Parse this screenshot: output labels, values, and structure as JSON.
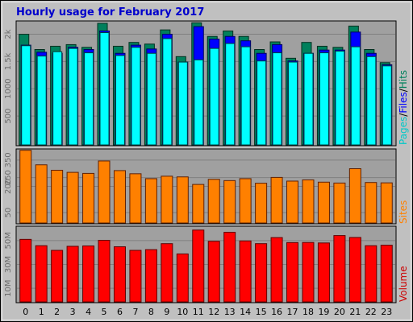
{
  "title": "Hourly usage for February 2017",
  "colors": {
    "background": "#c0c0c0",
    "panel": "#a0a0a0",
    "grid": "#808080",
    "title": "#0000cc",
    "hits": "#00805c",
    "files": "#0000ff",
    "pages": "#00ffff",
    "sites": "#ff8000",
    "volume": "#ff0000"
  },
  "side_labels": {
    "pages": "Pages",
    "files": "Files",
    "hits": "Hits",
    "sites": "Sites",
    "volume": "Volume",
    "sep": "/"
  },
  "chart_data": [
    {
      "type": "bar",
      "name": "hits-files-pages",
      "categories": [
        "0",
        "1",
        "2",
        "3",
        "4",
        "5",
        "6",
        "7",
        "8",
        "9",
        "10",
        "11",
        "12",
        "13",
        "14",
        "15",
        "16",
        "17",
        "18",
        "19",
        "20",
        "21",
        "22",
        "23"
      ],
      "ylim": [
        0,
        2200
      ],
      "yticks": [
        500,
        1000,
        1500,
        2000
      ],
      "ytick_labels": [
        "500",
        "1000",
        "1.5k",
        "2k"
      ],
      "series": [
        {
          "name": "Hits",
          "values": [
            2000,
            1720,
            1780,
            1810,
            1760,
            2200,
            1780,
            1850,
            1820,
            2080,
            1590,
            2210,
            1960,
            2060,
            1960,
            1720,
            1860,
            1560,
            1850,
            1780,
            1760,
            2150,
            1720,
            1480
          ]
        },
        {
          "name": "Files",
          "values": [
            1800,
            1670,
            1650,
            1760,
            1720,
            2060,
            1650,
            1800,
            1730,
            2000,
            1490,
            2140,
            1910,
            1960,
            1880,
            1650,
            1810,
            1510,
            1650,
            1710,
            1710,
            2040,
            1650,
            1440
          ]
        },
        {
          "name": "Pages",
          "values": [
            1790,
            1600,
            1680,
            1740,
            1660,
            2030,
            1610,
            1760,
            1650,
            1920,
            1490,
            1530,
            1740,
            1830,
            1770,
            1510,
            1660,
            1490,
            1650,
            1660,
            1690,
            1770,
            1590,
            1420
          ]
        }
      ]
    },
    {
      "type": "bar",
      "name": "sites",
      "categories": [
        "0",
        "1",
        "2",
        "3",
        "4",
        "5",
        "6",
        "7",
        "8",
        "9",
        "10",
        "11",
        "12",
        "13",
        "14",
        "15",
        "16",
        "17",
        "18",
        "19",
        "20",
        "21",
        "22",
        "23"
      ],
      "ylim": [
        0,
        400
      ],
      "yticks": [
        50,
        200,
        250,
        350
      ],
      "ytick_labels": [
        "50",
        "200",
        "250",
        "350"
      ],
      "series": [
        {
          "name": "Sites",
          "values": [
            406,
            323,
            292,
            280,
            274,
            345,
            290,
            272,
            244,
            258,
            254,
            211,
            240,
            233,
            244,
            218,
            251,
            230,
            237,
            224,
            219,
            301,
            222,
            220
          ]
        }
      ]
    },
    {
      "type": "bar",
      "name": "volume",
      "categories": [
        "0",
        "1",
        "2",
        "3",
        "4",
        "5",
        "6",
        "7",
        "8",
        "9",
        "10",
        "11",
        "12",
        "13",
        "14",
        "15",
        "16",
        "17",
        "18",
        "19",
        "20",
        "21",
        "22",
        "23"
      ],
      "ylim": [
        0,
        60000000
      ],
      "yticks": [
        10000000,
        30000000,
        50000000
      ],
      "ytick_labels": [
        "10M",
        "30M",
        "50M"
      ],
      "series": [
        {
          "name": "Volume",
          "values": [
            51000000,
            45700000,
            41800000,
            45200000,
            45500000,
            50200000,
            44800000,
            41800000,
            42400000,
            47400000,
            38800000,
            58800000,
            49400000,
            56900000,
            49700000,
            47400000,
            52500000,
            48300000,
            48400000,
            48000000,
            54200000,
            52600000,
            45700000,
            46100000
          ]
        }
      ]
    }
  ],
  "xlabels": [
    "0",
    "1",
    "2",
    "3",
    "4",
    "5",
    "6",
    "7",
    "8",
    "9",
    "10",
    "11",
    "12",
    "13",
    "14",
    "15",
    "16",
    "17",
    "18",
    "19",
    "20",
    "21",
    "22",
    "23"
  ]
}
